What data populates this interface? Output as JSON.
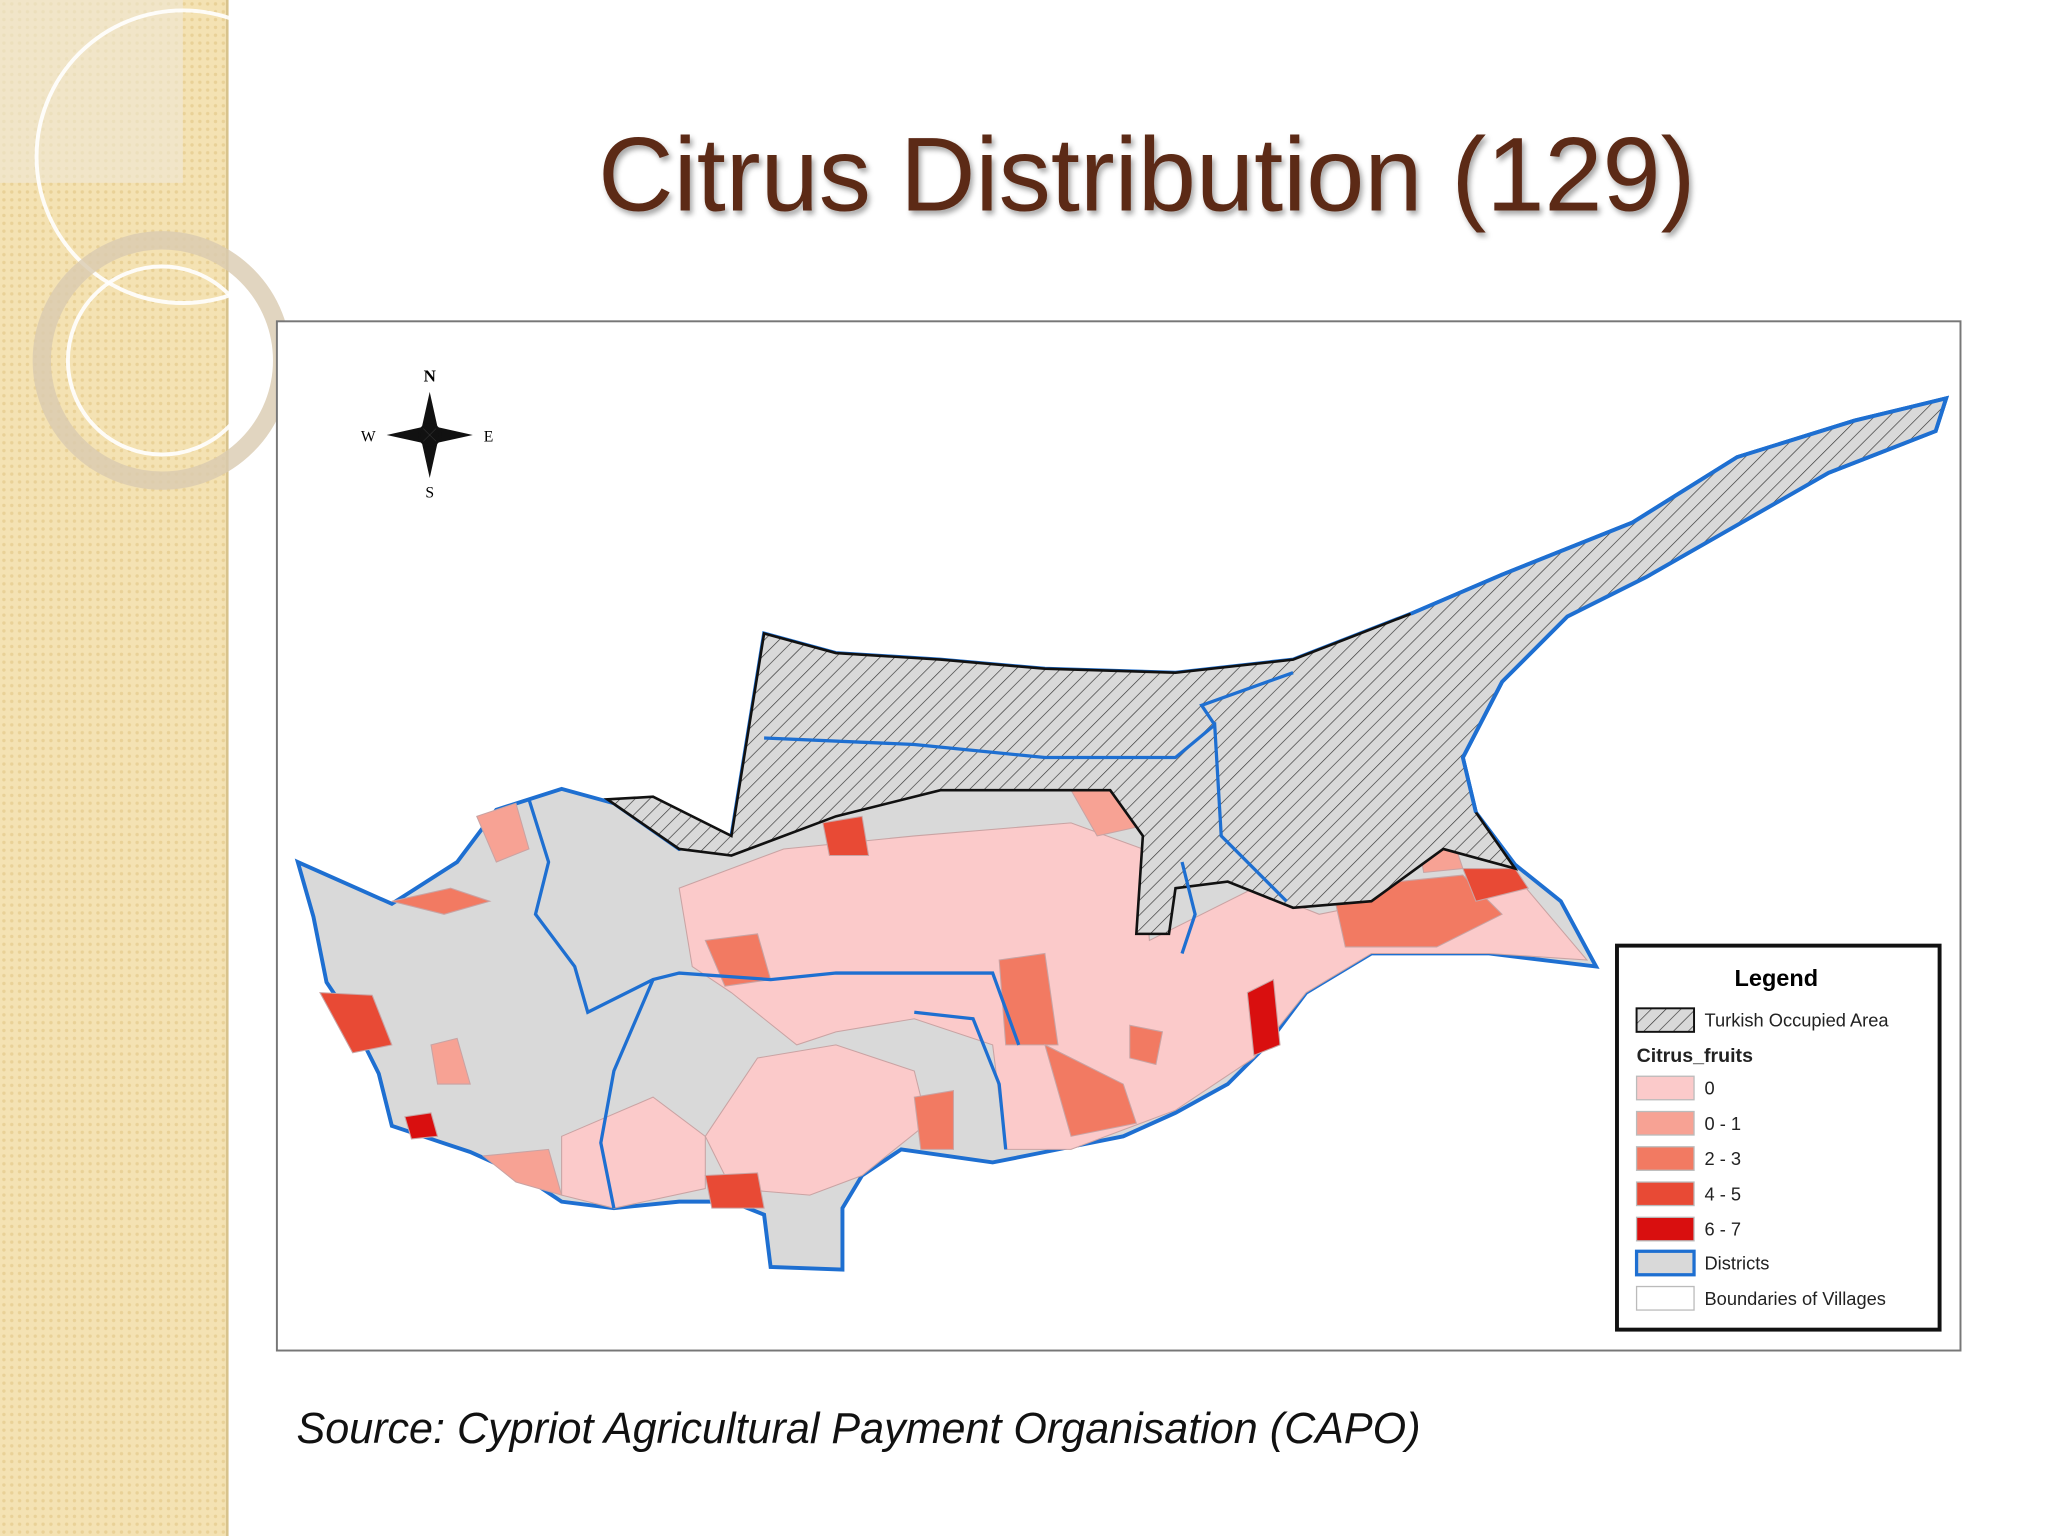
{
  "header": {
    "title": "Citrus Distribution (129)"
  },
  "map": {
    "compass": {
      "north": "N",
      "south": "S",
      "east": "E",
      "west": "W"
    },
    "legend": {
      "title": "Legend",
      "occupied": "Turkish Occupied Area",
      "field": "Citrus_fruits",
      "classes": [
        {
          "label": "0",
          "color": "#fbcaca"
        },
        {
          "label": "0 - 1",
          "color": "#f7a294"
        },
        {
          "label": "2 - 3",
          "color": "#f27a62"
        },
        {
          "label": "4 - 5",
          "color": "#e84a35"
        },
        {
          "label": "6 - 7",
          "color": "#d90f0f"
        }
      ],
      "districts": "Districts",
      "villages": "Boundaries of Villages"
    }
  },
  "source": "Source: Cypriot Agricultural Payment Organisation (CAPO)"
}
